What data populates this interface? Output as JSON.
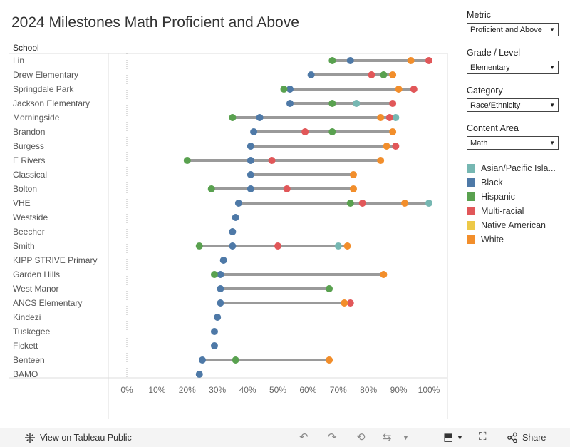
{
  "title": "2024 Milestones Math Proficient and Above",
  "filters": [
    {
      "label": "Metric",
      "value": "Proficient and Above"
    },
    {
      "label": "Grade / Level",
      "value": "Elementary"
    },
    {
      "label": "Category",
      "value": "Race/Ethnicity"
    },
    {
      "label": "Content Area",
      "value": "Math"
    }
  ],
  "legend": [
    {
      "name": "Asian/Pacific Isla...",
      "color": "#76b7b2"
    },
    {
      "name": "Black",
      "color": "#4e79a7"
    },
    {
      "name": "Hispanic",
      "color": "#59a14f"
    },
    {
      "name": "Multi-racial",
      "color": "#e15759"
    },
    {
      "name": "Native American",
      "color": "#edc948"
    },
    {
      "name": "White",
      "color": "#f28e2b"
    }
  ],
  "toolbar": {
    "view_label": "View on Tableau Public",
    "share_label": "Share"
  },
  "chart_data": {
    "type": "dot-range",
    "row_header": "School",
    "x_ticks": [
      "0%",
      "10%",
      "20%",
      "30%",
      "40%",
      "50%",
      "60%",
      "70%",
      "80%",
      "90%",
      "100%"
    ],
    "xlim": [
      0,
      100
    ],
    "grid": false,
    "legend_position": "right",
    "series_colors": {
      "Asian/Pacific Islander": "#76b7b2",
      "Black": "#4e79a7",
      "Hispanic": "#59a14f",
      "Multi-racial": "#e15759",
      "Native American": "#edc948",
      "White": "#f28e2b"
    },
    "rows": [
      {
        "school": "Lin",
        "values": {
          "Hispanic": 68,
          "Black": 74,
          "White": 94,
          "Multi-racial": 100
        }
      },
      {
        "school": "Drew Elementary",
        "values": {
          "Black": 61,
          "Multi-racial": 81,
          "Hispanic": 85,
          "White": 88
        }
      },
      {
        "school": "Springdale Park",
        "values": {
          "Hispanic": 52,
          "Black": 54,
          "White": 90,
          "Multi-racial": 95
        }
      },
      {
        "school": "Jackson Elementary",
        "values": {
          "Black": 54,
          "Hispanic": 68,
          "Asian/Pacific Islander": 76,
          "Multi-racial": 88
        }
      },
      {
        "school": "Morningside",
        "values": {
          "Hispanic": 35,
          "Black": 44,
          "White": 84,
          "Multi-racial": 87,
          "Asian/Pacific Islander": 89
        }
      },
      {
        "school": "Brandon",
        "values": {
          "Black": 42,
          "Multi-racial": 59,
          "Hispanic": 68,
          "White": 88
        }
      },
      {
        "school": "Burgess",
        "values": {
          "Black": 41,
          "White": 86,
          "Multi-racial": 89
        }
      },
      {
        "school": "E Rivers",
        "values": {
          "Hispanic": 20,
          "Black": 41,
          "Multi-racial": 48,
          "White": 84
        }
      },
      {
        "school": "Classical",
        "values": {
          "Black": 41,
          "White": 75
        }
      },
      {
        "school": "Bolton",
        "values": {
          "Hispanic": 28,
          "Black": 41,
          "Multi-racial": 53,
          "White": 75
        }
      },
      {
        "school": "VHE",
        "values": {
          "Black": 37,
          "Hispanic": 74,
          "Multi-racial": 78,
          "White": 92,
          "Asian/Pacific Islander": 100
        }
      },
      {
        "school": "Westside",
        "values": {
          "Black": 36
        }
      },
      {
        "school": "Beecher",
        "values": {
          "Black": 35
        }
      },
      {
        "school": "Smith",
        "values": {
          "Hispanic": 24,
          "Black": 35,
          "Multi-racial": 50,
          "Asian/Pacific Islander": 70,
          "White": 73
        }
      },
      {
        "school": "KIPP STRIVE Primary",
        "values": {
          "Black": 32
        }
      },
      {
        "school": "Garden Hills",
        "values": {
          "Hispanic": 29,
          "Black": 31,
          "White": 85
        }
      },
      {
        "school": "West Manor",
        "values": {
          "Black": 31,
          "Hispanic": 67
        }
      },
      {
        "school": "ANCS Elementary",
        "values": {
          "Black": 31,
          "White": 72,
          "Multi-racial": 74
        }
      },
      {
        "school": "Kindezi",
        "values": {
          "Black": 30
        }
      },
      {
        "school": "Tuskegee",
        "values": {
          "Black": 29
        }
      },
      {
        "school": "Fickett",
        "values": {
          "Black": 29
        }
      },
      {
        "school": "Benteen",
        "values": {
          "Black": 25,
          "Hispanic": 36,
          "White": 67
        }
      },
      {
        "school": "BAMO",
        "values": {
          "Black": 24
        }
      }
    ]
  }
}
